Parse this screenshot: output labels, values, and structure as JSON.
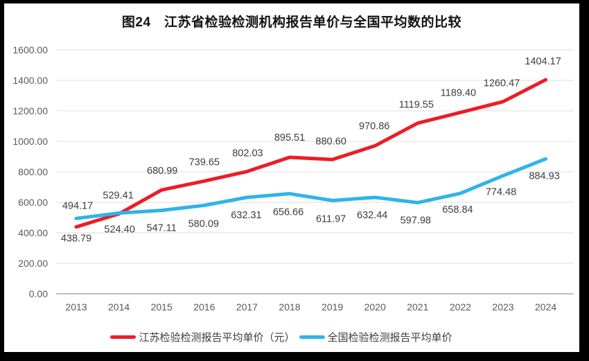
{
  "frame": {
    "outer_border_color": "#000000",
    "page_background": "#ffffff"
  },
  "chart_data": {
    "type": "line",
    "title": "图24　江苏省检验检测机构报告单价与全国平均数的比较",
    "categories": [
      "2013",
      "2014",
      "2015",
      "2016",
      "2017",
      "2018",
      "2019",
      "2020",
      "2021",
      "2022",
      "2023",
      "2024"
    ],
    "series": [
      {
        "name": "江苏检验检测报告平均单价（元）",
        "color": "#ee1c25",
        "values": [
          438.79,
          524.4,
          680.99,
          739.65,
          802.03,
          895.51,
          880.6,
          970.86,
          1119.55,
          1189.4,
          1260.47,
          1404.17
        ]
      },
      {
        "name": "全国检验检测报告平均单价",
        "color": "#2eb4e9",
        "values": [
          494.17,
          529.41,
          547.11,
          580.09,
          632.31,
          656.66,
          611.97,
          632.44,
          597.98,
          658.84,
          774.48,
          884.93
        ]
      }
    ],
    "xlabel": "",
    "ylabel": "",
    "ylim": [
      0,
      1600
    ],
    "ytick_step": 200,
    "y_tick_format_decimals": 2,
    "grid": true,
    "legend_position": "bottom",
    "data_labels": true,
    "axis_label_color": "#595959",
    "data_label_color": "#3d3d3d",
    "gridline_color": "#dcdcdc",
    "axis_line_color": "#bfbfbf"
  }
}
